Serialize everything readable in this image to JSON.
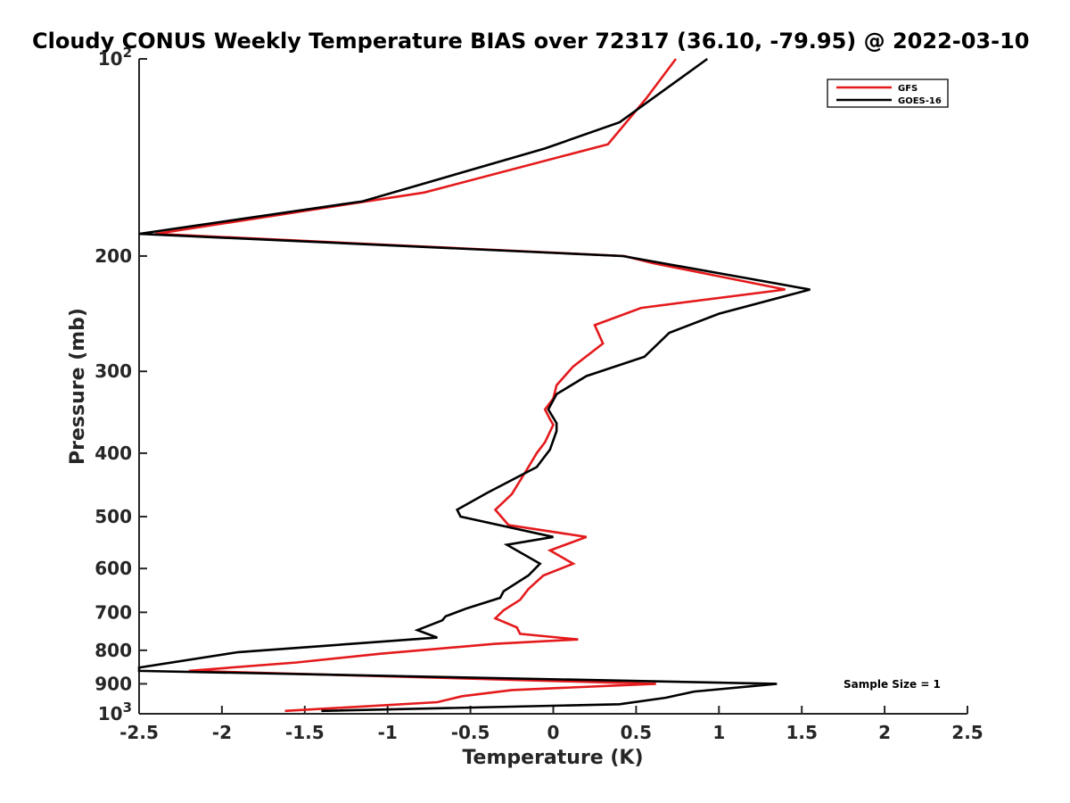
{
  "chart_data": {
    "type": "line",
    "title": "Cloudy CONUS Weekly Temperature BIAS over 72317 (36.10, -79.95) @ 2022-03-10",
    "xlabel": "Temperature (K)",
    "ylabel": "Pressure (mb)",
    "xlim": [
      -2.5,
      2.5
    ],
    "ylim": [
      1000,
      100
    ],
    "y_scale": "log",
    "y_reversed": true,
    "x_ticks": [
      "-2.5",
      "-2",
      "-1.5",
      "-1",
      "-0.5",
      "0",
      "0.5",
      "1",
      "1.5",
      "2",
      "2.5"
    ],
    "y_ticks": [
      {
        "value": 100,
        "base": "10",
        "exp": "2"
      },
      {
        "value": 200,
        "base": "200",
        "exp": ""
      },
      {
        "value": 300,
        "base": "300",
        "exp": ""
      },
      {
        "value": 400,
        "base": "400",
        "exp": ""
      },
      {
        "value": 500,
        "base": "500",
        "exp": ""
      },
      {
        "value": 600,
        "base": "600",
        "exp": ""
      },
      {
        "value": 700,
        "base": "700",
        "exp": ""
      },
      {
        "value": 800,
        "base": "800",
        "exp": ""
      },
      {
        "value": 900,
        "base": "900",
        "exp": ""
      },
      {
        "value": 1000,
        "base": "10",
        "exp": "3"
      }
    ],
    "grid": false,
    "legend_position": "top-right",
    "annotation": "Sample Size = 1",
    "series": [
      {
        "name": "GFS",
        "color": "#e41a1c",
        "points": [
          [
            0.74,
            100
          ],
          [
            0.56,
            115
          ],
          [
            0.33,
            135
          ],
          [
            -0.78,
            160
          ],
          [
            -2.4,
            185
          ],
          [
            0.43,
            200
          ],
          [
            0.6,
            205
          ],
          [
            1.4,
            225
          ],
          [
            0.53,
            240
          ],
          [
            0.25,
            255
          ],
          [
            0.3,
            272
          ],
          [
            0.12,
            295
          ],
          [
            0.02,
            315
          ],
          [
            0.0,
            330
          ],
          [
            -0.05,
            343
          ],
          [
            -0.02,
            355
          ],
          [
            0.0,
            362
          ],
          [
            -0.05,
            385
          ],
          [
            -0.1,
            400
          ],
          [
            -0.15,
            420
          ],
          [
            -0.25,
            462
          ],
          [
            -0.35,
            488
          ],
          [
            -0.27,
            515
          ],
          [
            0.2,
            537
          ],
          [
            -0.02,
            563
          ],
          [
            0.12,
            590
          ],
          [
            -0.06,
            615
          ],
          [
            -0.15,
            645
          ],
          [
            -0.2,
            670
          ],
          [
            -0.3,
            695
          ],
          [
            -0.35,
            715
          ],
          [
            -0.22,
            738
          ],
          [
            -0.2,
            755
          ],
          [
            0.15,
            770
          ],
          [
            -0.35,
            782
          ],
          [
            -1.05,
            810
          ],
          [
            -1.55,
            835
          ],
          [
            -2.2,
            860
          ],
          [
            0.62,
            900
          ],
          [
            -0.25,
            920
          ],
          [
            -0.55,
            940
          ],
          [
            -0.7,
            960
          ],
          [
            -1.62,
            990
          ]
        ]
      },
      {
        "name": "GOES-16",
        "color": "#000000",
        "points": [
          [
            0.93,
            100
          ],
          [
            0.4,
            125
          ],
          [
            -0.05,
            137
          ],
          [
            -1.15,
            165
          ],
          [
            -2.52,
            185
          ],
          [
            0.42,
            200
          ],
          [
            1.55,
            225
          ],
          [
            1.0,
            245
          ],
          [
            0.7,
            262
          ],
          [
            0.55,
            285
          ],
          [
            0.2,
            305
          ],
          [
            0.02,
            325
          ],
          [
            -0.03,
            343
          ],
          [
            0.02,
            360
          ],
          [
            0.02,
            370
          ],
          [
            -0.02,
            395
          ],
          [
            -0.1,
            420
          ],
          [
            -0.4,
            460
          ],
          [
            -0.58,
            488
          ],
          [
            -0.56,
            500
          ],
          [
            0.0,
            537
          ],
          [
            -0.28,
            552
          ],
          [
            -0.08,
            590
          ],
          [
            -0.15,
            615
          ],
          [
            -0.3,
            650
          ],
          [
            -0.32,
            665
          ],
          [
            -0.52,
            690
          ],
          [
            -0.65,
            710
          ],
          [
            -0.67,
            720
          ],
          [
            -0.82,
            745
          ],
          [
            -0.7,
            765
          ],
          [
            -1.9,
            805
          ],
          [
            -2.52,
            850
          ],
          [
            -2.5,
            860
          ],
          [
            1.35,
            900
          ],
          [
            0.85,
            925
          ],
          [
            0.68,
            945
          ],
          [
            0.4,
            967
          ],
          [
            -1.4,
            990
          ]
        ]
      }
    ]
  }
}
